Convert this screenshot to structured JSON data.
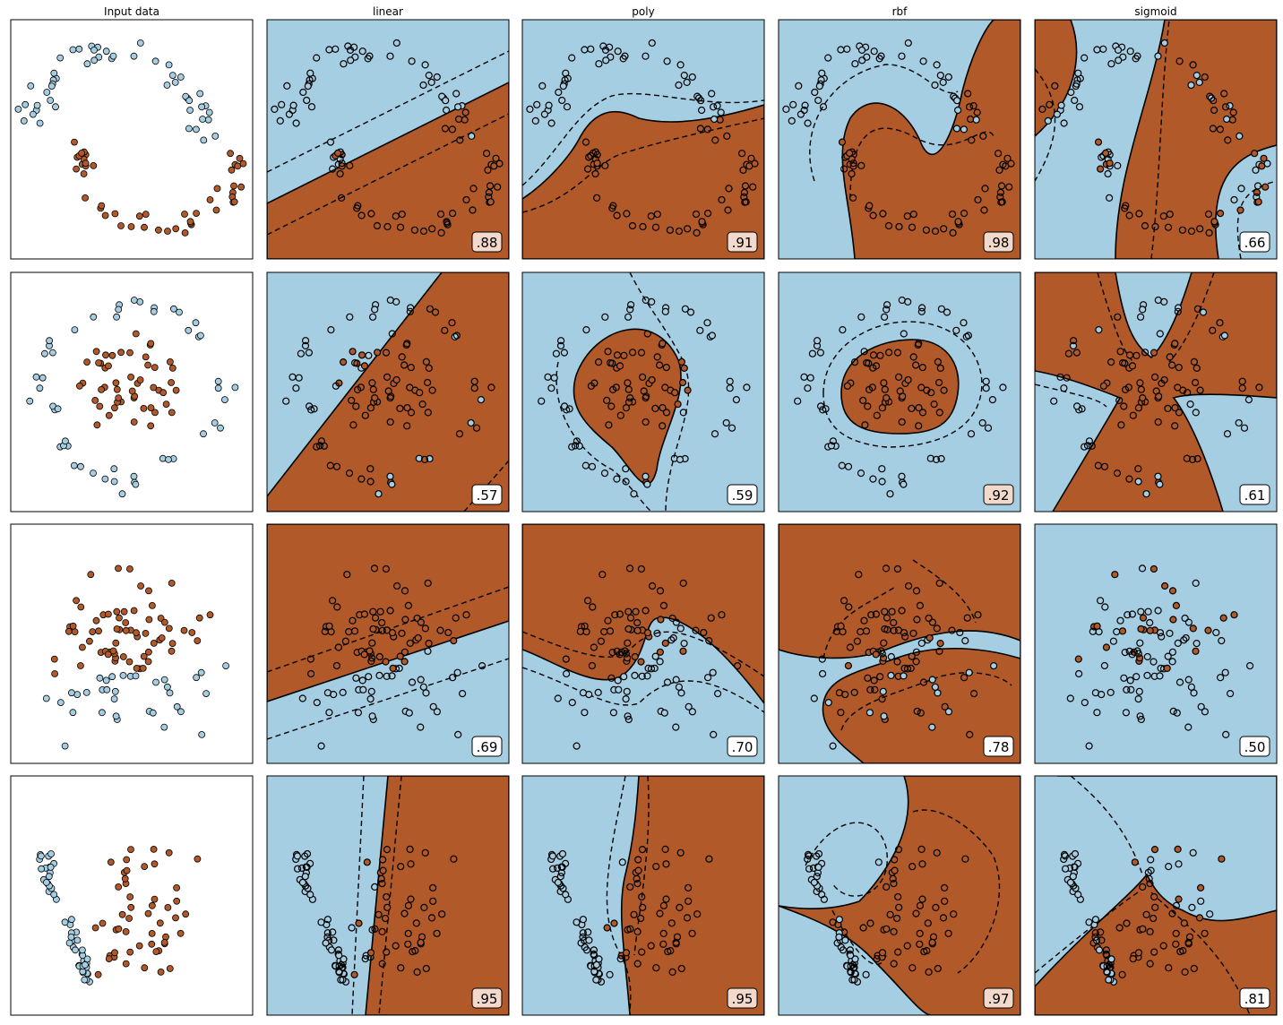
{
  "figure": {
    "columns": [
      "Input data",
      "linear",
      "poly",
      "rbf",
      "sigmoid"
    ]
  },
  "colors": {
    "class_a": "#a6cee3",
    "class_b": "#b15928",
    "point_edge": "#000000",
    "score_high_bg": "#f3d9cc",
    "score_low_bg": "#ffffff"
  },
  "chart_data": {
    "type": "scatter",
    "grid": false,
    "datasets": [
      "moons",
      "circles",
      "xor",
      "blobs"
    ],
    "kernels": [
      "linear",
      "poly",
      "rbf",
      "sigmoid"
    ],
    "scores": [
      {
        "dataset": "moons",
        "linear": ".88",
        "poly": ".91",
        "rbf": ".98",
        "sigmoid": ".66"
      },
      {
        "dataset": "circles",
        "linear": ".57",
        "poly": ".59",
        "rbf": ".92",
        "sigmoid": ".61"
      },
      {
        "dataset": "xor",
        "linear": ".69",
        "poly": ".70",
        "rbf": ".78",
        "sigmoid": ".50"
      },
      {
        "dataset": "blobs",
        "linear": ".95",
        "poly": ".95",
        "rbf": ".97",
        "sigmoid": ".81"
      }
    ]
  }
}
